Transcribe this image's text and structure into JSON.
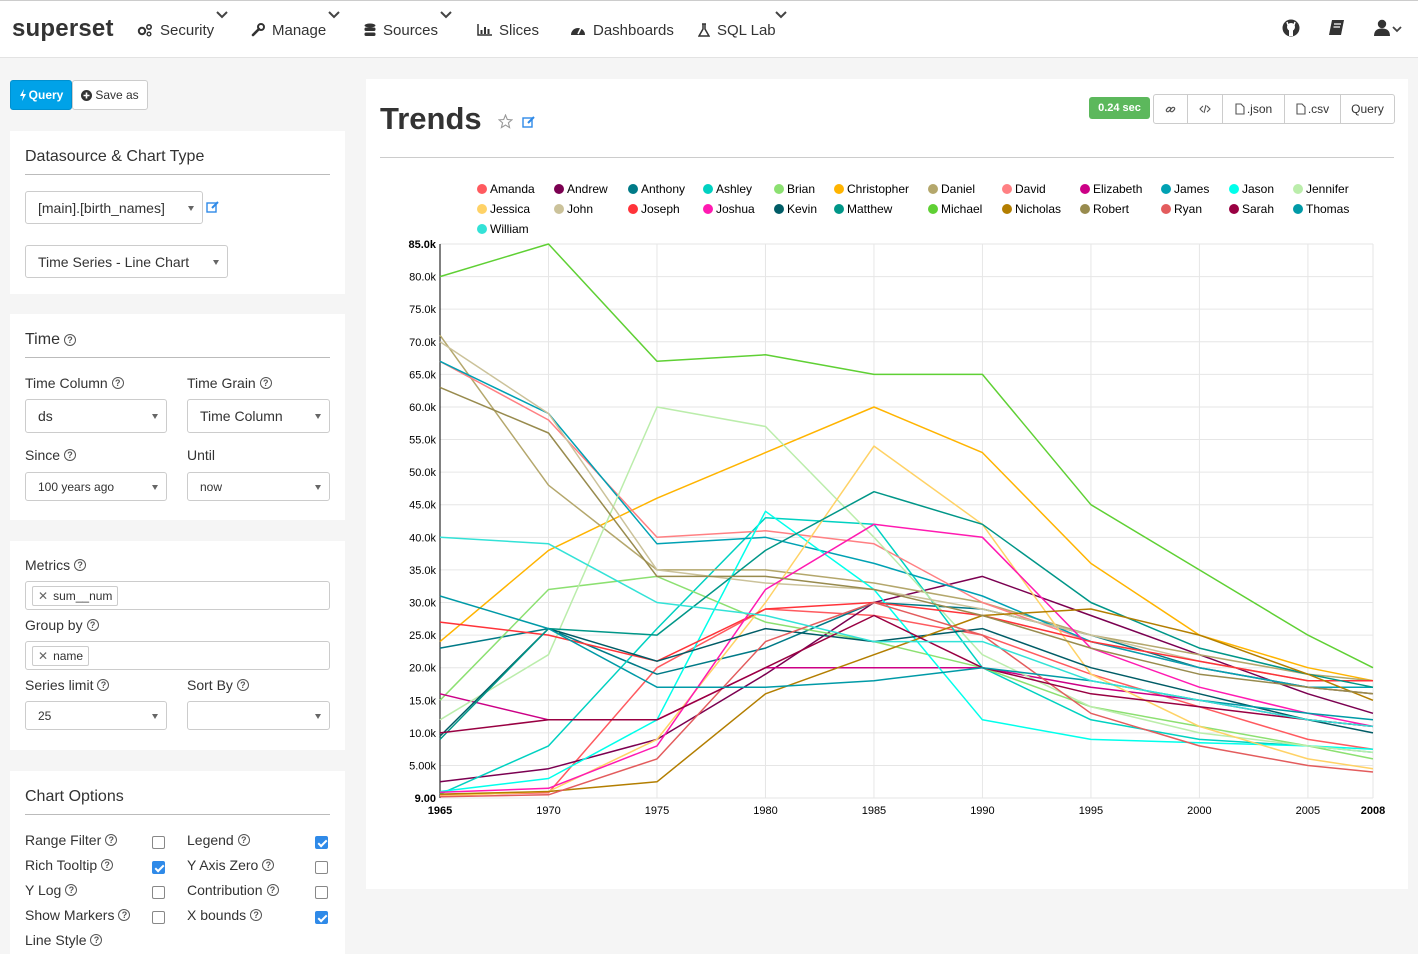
{
  "app": {
    "brand": "superset"
  },
  "nav": {
    "security": "Security",
    "manage": "Manage",
    "sources": "Sources",
    "slices": "Slices",
    "dashboards": "Dashboards",
    "sql_lab": "SQL Lab",
    "icons": [
      "github-icon",
      "book-icon",
      "user-icon"
    ]
  },
  "actions": {
    "query": "Query",
    "save_as": "Save as"
  },
  "datasource_panel": {
    "title": "Datasource & Chart Type",
    "datasource": "[main].[birth_names]",
    "viz_type": "Time Series - Line Chart"
  },
  "time_panel": {
    "title": "Time",
    "time_column_label": "Time Column",
    "time_column_value": "ds",
    "time_grain_label": "Time Grain",
    "time_grain_value": "Time Column",
    "since_label": "Since",
    "since_value": "100 years ago",
    "until_label": "Until",
    "until_value": "now"
  },
  "query_panel": {
    "metrics_label": "Metrics",
    "metrics_tag": "sum__num",
    "groupby_label": "Group by",
    "groupby_tag": "name",
    "series_limit_label": "Series limit",
    "series_limit_value": "25",
    "sort_by_label": "Sort By",
    "sort_by_value": ""
  },
  "chart_options": {
    "title": "Chart Options",
    "range_filter": {
      "label": "Range Filter",
      "checked": false
    },
    "legend": {
      "label": "Legend",
      "checked": true
    },
    "rich_tooltip": {
      "label": "Rich Tooltip",
      "checked": true
    },
    "y_axis_zero": {
      "label": "Y Axis Zero",
      "checked": false
    },
    "y_log": {
      "label": "Y Log",
      "checked": false
    },
    "contribution": {
      "label": "Contribution",
      "checked": false
    },
    "show_markers": {
      "label": "Show Markers",
      "checked": false
    },
    "x_bounds": {
      "label": "X bounds",
      "checked": true
    },
    "line_style": {
      "label": "Line Style"
    }
  },
  "slice_header": {
    "title": "Trends",
    "timer": "0.24 sec",
    "json_btn": ".json",
    "csv_btn": ".csv",
    "query_btn": "Query"
  },
  "chart_data": {
    "type": "line",
    "title": "",
    "xlabel": "",
    "ylabel": "",
    "xlim": [
      1965,
      2008
    ],
    "ylim": [
      9,
      85000
    ],
    "grid": true,
    "legend_position": "top",
    "x_ticks": [
      "1965",
      "1970",
      "1975",
      "1980",
      "1985",
      "1990",
      "1995",
      "2000",
      "2005",
      "2008"
    ],
    "y_ticks": [
      "9.00",
      "5.00k",
      "10.0k",
      "15.0k",
      "20.0k",
      "25.0k",
      "30.0k",
      "35.0k",
      "40.0k",
      "45.0k",
      "50.0k",
      "55.0k",
      "60.0k",
      "65.0k",
      "70.0k",
      "75.0k",
      "80.0k",
      "85.0k"
    ],
    "x": [
      1965,
      1970,
      1975,
      1980,
      1985,
      1990,
      1995,
      2000,
      2005,
      2008
    ],
    "series": [
      {
        "name": "Amanda",
        "color": "#ff5a5f",
        "values": [
          500,
          800,
          20000,
          29000,
          28000,
          25000,
          19000,
          14000,
          9000,
          7500
        ]
      },
      {
        "name": "Andrew",
        "color": "#7b0051",
        "values": [
          2500,
          4500,
          9000,
          19000,
          30000,
          34000,
          28000,
          22000,
          16000,
          13000
        ]
      },
      {
        "name": "Anthony",
        "color": "#007a87",
        "values": [
          23000,
          26000,
          19000,
          23000,
          30000,
          29000,
          25000,
          20000,
          17000,
          16000
        ]
      },
      {
        "name": "Ashley",
        "color": "#00d1c1",
        "values": [
          600,
          8000,
          26000,
          43000,
          42000,
          20000,
          12000,
          9000,
          8000,
          7000
        ]
      },
      {
        "name": "Brian",
        "color": "#8ce071",
        "values": [
          15000,
          32000,
          34000,
          27000,
          24000,
          20000,
          14000,
          11000,
          8000,
          6000
        ]
      },
      {
        "name": "Christopher",
        "color": "#ffb400",
        "values": [
          24000,
          38000,
          46000,
          53000,
          60000,
          53000,
          36000,
          25000,
          20000,
          18000
        ]
      },
      {
        "name": "Daniel",
        "color": "#b4a76c",
        "values": [
          71000,
          48000,
          35000,
          35000,
          33000,
          30000,
          25000,
          22000,
          19000,
          18000
        ]
      },
      {
        "name": "David",
        "color": "#ff8083",
        "values": [
          67000,
          58000,
          40000,
          41000,
          39000,
          30000,
          24000,
          20000,
          17000,
          16000
        ]
      },
      {
        "name": "Elizabeth",
        "color": "#cc0086",
        "values": [
          16000,
          12000,
          12000,
          20000,
          20000,
          20000,
          17000,
          15000,
          12000,
          11000
        ]
      },
      {
        "name": "James",
        "color": "#00a1b3",
        "values": [
          67000,
          59000,
          39000,
          40000,
          36000,
          31000,
          24000,
          20000,
          17000,
          17000
        ]
      },
      {
        "name": "Jason",
        "color": "#00ffeb",
        "values": [
          1000,
          3000,
          12000,
          44000,
          32000,
          12000,
          9000,
          8500,
          8000,
          7500
        ]
      },
      {
        "name": "Jennifer",
        "color": "#bbedab",
        "values": [
          12000,
          22000,
          60000,
          57000,
          40000,
          22000,
          14000,
          10000,
          8000,
          7000
        ]
      },
      {
        "name": "Jessica",
        "color": "#ffd266",
        "values": [
          300,
          1000,
          9000,
          30000,
          54000,
          42000,
          19000,
          11000,
          6000,
          4500
        ]
      },
      {
        "name": "John",
        "color": "#cbc29a",
        "values": [
          70000,
          59000,
          35000,
          33000,
          32000,
          29000,
          25000,
          21000,
          18000,
          18000
        ]
      },
      {
        "name": "Joseph",
        "color": "#ff3339",
        "values": [
          27000,
          25000,
          21000,
          29000,
          30000,
          28000,
          24000,
          21000,
          18000,
          18000
        ]
      },
      {
        "name": "Joshua",
        "color": "#ff1ab1",
        "values": [
          900,
          1500,
          8000,
          32000,
          42000,
          40000,
          23000,
          17000,
          13000,
          11000
        ]
      },
      {
        "name": "Kevin",
        "color": "#005c66",
        "values": [
          9500,
          26000,
          21000,
          26000,
          24000,
          26000,
          20000,
          16000,
          12000,
          10000
        ]
      },
      {
        "name": "Matthew",
        "color": "#009688",
        "values": [
          9000,
          26000,
          25000,
          38000,
          47000,
          42000,
          30000,
          23000,
          19000,
          17000
        ]
      },
      {
        "name": "Michael",
        "color": "#5fd034",
        "values": [
          80000,
          85000,
          67000,
          68000,
          65000,
          65000,
          45000,
          35000,
          25000,
          20000
        ]
      },
      {
        "name": "Nicholas",
        "color": "#b37e00",
        "values": [
          600,
          1000,
          2500,
          16000,
          22000,
          28000,
          29000,
          25000,
          19000,
          15000
        ]
      },
      {
        "name": "Robert",
        "color": "#988b4e",
        "values": [
          63000,
          56000,
          34000,
          34000,
          32000,
          28000,
          23000,
          19000,
          17000,
          16000
        ]
      },
      {
        "name": "Ryan",
        "color": "#e35c5d",
        "values": [
          200,
          500,
          6000,
          24000,
          30000,
          25000,
          13000,
          8000,
          5000,
          4000
        ]
      },
      {
        "name": "Sarah",
        "color": "#990042",
        "values": [
          10000,
          12000,
          12000,
          20000,
          28000,
          20000,
          16000,
          14000,
          12000,
          11000
        ]
      },
      {
        "name": "Thomas",
        "color": "#009aa7",
        "values": [
          31000,
          26000,
          17000,
          17000,
          18000,
          20000,
          18000,
          15000,
          13000,
          12000
        ]
      },
      {
        "name": "William",
        "color": "#33e2d7",
        "values": [
          40000,
          39000,
          30000,
          28000,
          24000,
          24000,
          18000,
          15000,
          12000,
          11000
        ]
      }
    ]
  }
}
